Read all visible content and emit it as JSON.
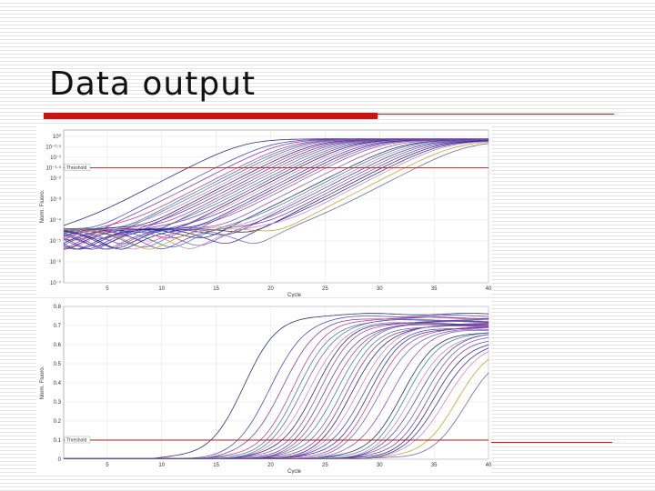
{
  "slide": {
    "title": "Data output"
  },
  "colors": {
    "accent_red": "#cc1111",
    "threshold": "#b02020",
    "palette": [
      "#1a1a6e",
      "#3b3bb5",
      "#7a2a9e",
      "#c0308a",
      "#5d5da8",
      "#d27ab8",
      "#2a7a9e",
      "#b8a020",
      "#8844aa",
      "#2222aa"
    ]
  },
  "chart_data": [
    {
      "type": "line",
      "scale": "log",
      "title": "",
      "xlabel": "Cycle",
      "ylabel": "Norm. Fluoro.",
      "xlim": [
        1,
        40
      ],
      "ylim": [
        -7,
        0.3
      ],
      "x_ticks": [
        "5",
        "10",
        "15",
        "20",
        "25",
        "30",
        "35",
        "40"
      ],
      "x_tick_values": [
        5,
        10,
        15,
        20,
        25,
        30,
        35,
        40
      ],
      "y_ticks": [
        {
          "v": 0,
          "label": "10⁰"
        },
        {
          "v": -0.5,
          "label": "10⁻⁰·⁵"
        },
        {
          "v": -1,
          "label": "10⁻¹"
        },
        {
          "v": -1.5,
          "label": "10⁻¹·⁵"
        },
        {
          "v": -2,
          "label": "10⁻²"
        },
        {
          "v": -3,
          "label": "10⁻³"
        },
        {
          "v": -4,
          "label": "10⁻⁴"
        },
        {
          "v": -5,
          "label": "10⁻⁵"
        },
        {
          "v": -6,
          "label": "10⁻⁶"
        },
        {
          "v": -7,
          "label": "10⁻⁷"
        }
      ],
      "threshold": {
        "value": -1.5,
        "label": "Threshold"
      },
      "grid": true,
      "legend": "none"
    },
    {
      "type": "line",
      "scale": "linear",
      "title": "",
      "xlabel": "Cycle",
      "ylabel": "Norm. Fluoro.",
      "xlim": [
        1,
        40
      ],
      "ylim": [
        0,
        0.8
      ],
      "x_ticks": [
        "5",
        "10",
        "15",
        "20",
        "25",
        "30",
        "35",
        "40"
      ],
      "x_tick_values": [
        5,
        10,
        15,
        20,
        25,
        30,
        35,
        40
      ],
      "y_ticks": [
        {
          "v": 0,
          "label": "0"
        },
        {
          "v": 0.1,
          "label": "0.1"
        },
        {
          "v": 0.2,
          "label": "0.2"
        },
        {
          "v": 0.3,
          "label": "0.3"
        },
        {
          "v": 0.4,
          "label": "0.4"
        },
        {
          "v": 0.5,
          "label": "0.5"
        },
        {
          "v": 0.6,
          "label": "0.6"
        },
        {
          "v": 0.7,
          "label": "0.7"
        },
        {
          "v": 0.8,
          "label": "0.8"
        }
      ],
      "threshold": {
        "value": 0.1,
        "label": "Threshold"
      },
      "grid": true,
      "legend": "none"
    }
  ],
  "amplification_curves": [
    {
      "ct": 13.5,
      "plateau": 0.76,
      "color": "#1a1a6e"
    },
    {
      "ct": 16.0,
      "plateau": 0.75,
      "color": "#3b3bb5"
    },
    {
      "ct": 17.0,
      "plateau": 0.74,
      "color": "#7a2a9e"
    },
    {
      "ct": 18.0,
      "plateau": 0.74,
      "color": "#c0308a"
    },
    {
      "ct": 18.5,
      "plateau": 0.73,
      "color": "#2a7a9e"
    },
    {
      "ct": 19.0,
      "plateau": 0.73,
      "color": "#5d5da8"
    },
    {
      "ct": 19.5,
      "plateau": 0.72,
      "color": "#d27ab8"
    },
    {
      "ct": 20.0,
      "plateau": 0.72,
      "color": "#1a1a6e"
    },
    {
      "ct": 20.5,
      "plateau": 0.72,
      "color": "#8844aa"
    },
    {
      "ct": 21.0,
      "plateau": 0.71,
      "color": "#3b3bb5"
    },
    {
      "ct": 21.5,
      "plateau": 0.71,
      "color": "#c0308a"
    },
    {
      "ct": 22.0,
      "plateau": 0.71,
      "color": "#2a7a9e"
    },
    {
      "ct": 22.5,
      "plateau": 0.7,
      "color": "#5d5da8"
    },
    {
      "ct": 23.0,
      "plateau": 0.7,
      "color": "#7a2a9e"
    },
    {
      "ct": 23.5,
      "plateau": 0.7,
      "color": "#1a1a6e"
    },
    {
      "ct": 24.0,
      "plateau": 0.7,
      "color": "#d27ab8"
    },
    {
      "ct": 24.5,
      "plateau": 0.69,
      "color": "#3b3bb5"
    },
    {
      "ct": 25.0,
      "plateau": 0.69,
      "color": "#2222aa"
    },
    {
      "ct": 25.5,
      "plateau": 0.69,
      "color": "#c0308a"
    },
    {
      "ct": 26.0,
      "plateau": 0.68,
      "color": "#5d5da8"
    },
    {
      "ct": 27.0,
      "plateau": 0.68,
      "color": "#8844aa"
    },
    {
      "ct": 28.0,
      "plateau": 0.67,
      "color": "#1a1a6e"
    },
    {
      "ct": 28.5,
      "plateau": 0.67,
      "color": "#2a7a9e"
    },
    {
      "ct": 29.0,
      "plateau": 0.66,
      "color": "#d27ab8"
    },
    {
      "ct": 29.5,
      "plateau": 0.66,
      "color": "#3b3bb5"
    },
    {
      "ct": 30.0,
      "plateau": 0.65,
      "color": "#5d5da8"
    },
    {
      "ct": 30.5,
      "plateau": 0.64,
      "color": "#7a2a9e"
    },
    {
      "ct": 31.0,
      "plateau": 0.63,
      "color": "#1a1a6e"
    },
    {
      "ct": 31.5,
      "plateau": 0.62,
      "color": "#2222aa"
    },
    {
      "ct": 32.0,
      "plateau": 0.61,
      "color": "#d27ab8"
    },
    {
      "ct": 33.0,
      "plateau": 0.6,
      "color": "#b8a020"
    },
    {
      "ct": 34.0,
      "plateau": 0.58,
      "color": "#5d5da8"
    }
  ]
}
